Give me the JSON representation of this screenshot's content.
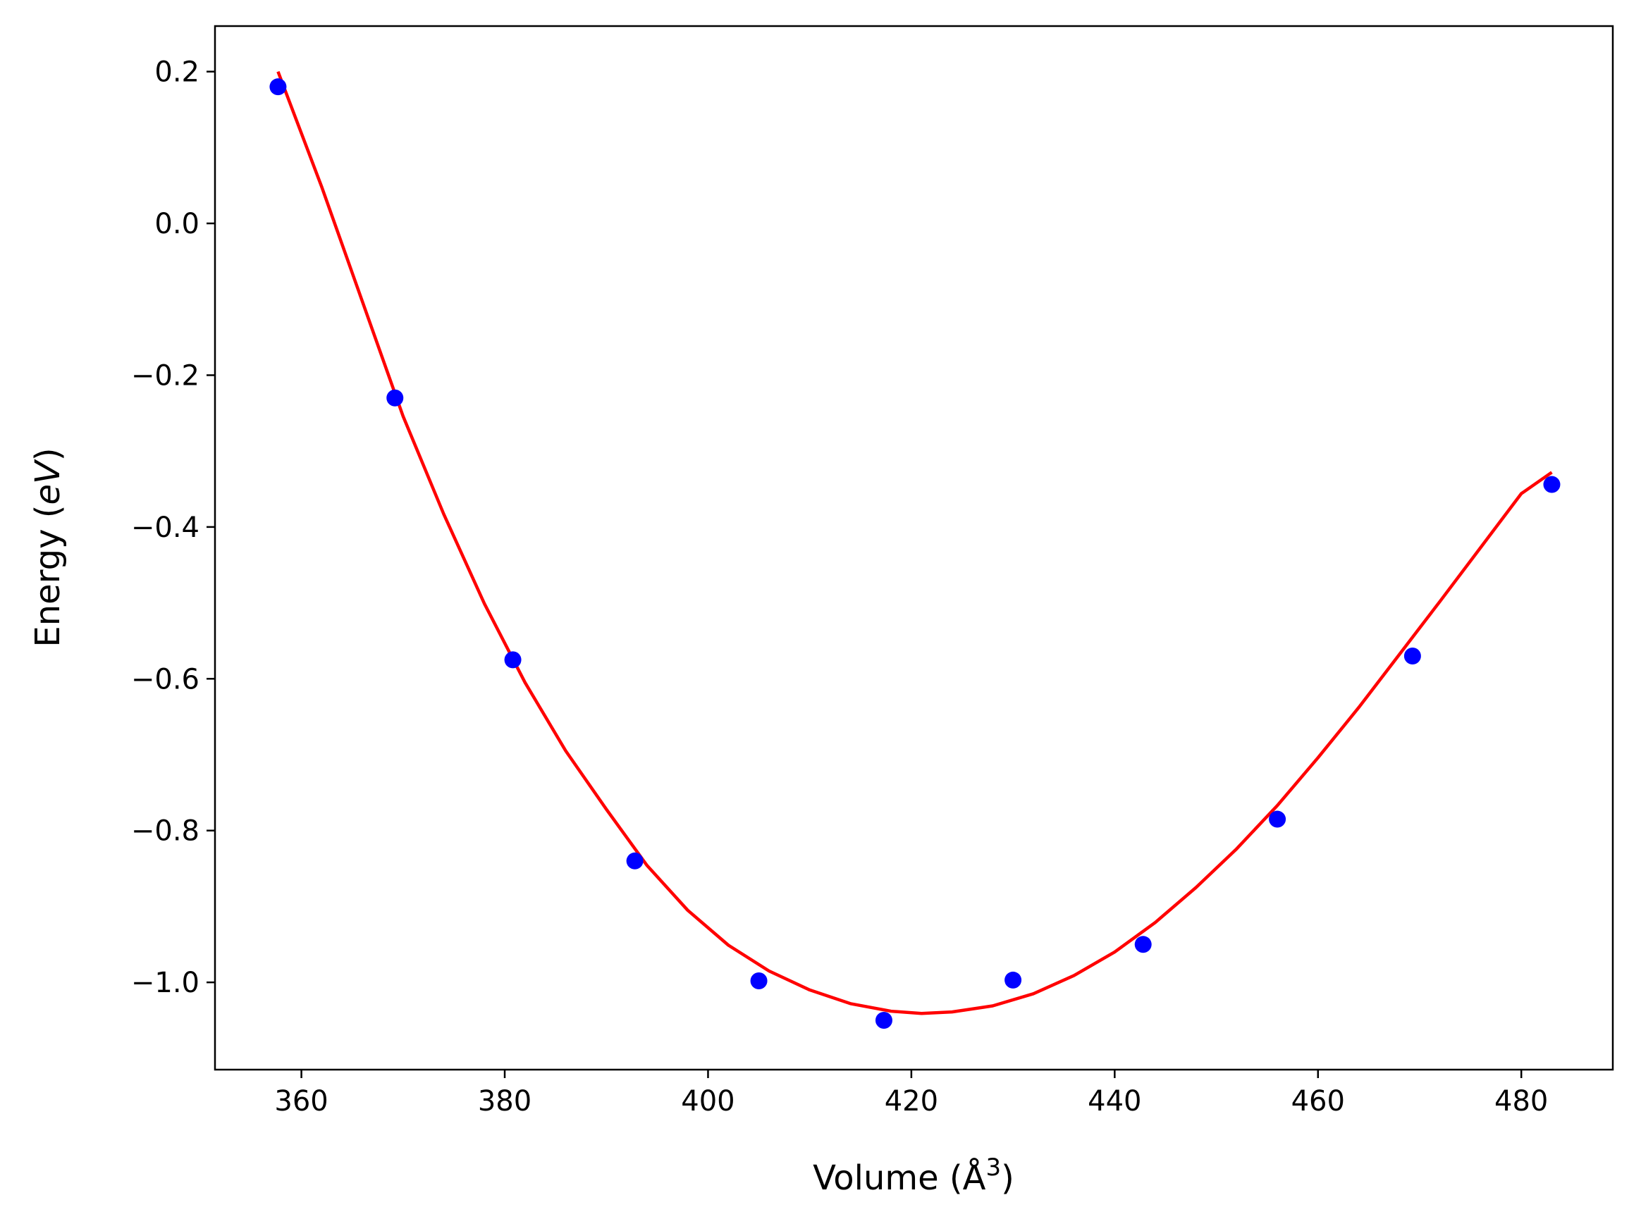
{
  "chart_data": {
    "type": "scatter",
    "title": "",
    "xlabel": "Volume (Å",
    "xlabel_sup": "3",
    "xlabel_close": ")",
    "ylabel": "Energy (",
    "ylabel_italic": "eV",
    "ylabel_close": ")",
    "xlim": [
      351.5,
      489
    ],
    "ylim": [
      -1.115,
      0.26
    ],
    "xticks": [
      360,
      380,
      400,
      420,
      440,
      460,
      480
    ],
    "xtick_labels": [
      "360",
      "380",
      "400",
      "420",
      "440",
      "460",
      "480"
    ],
    "yticks": [
      0.2,
      0.0,
      -0.2,
      -0.4,
      -0.6,
      -0.8,
      -1.0
    ],
    "ytick_labels": [
      "0.2",
      "0.0",
      "−0.2",
      "−0.4",
      "−0.6",
      "−0.8",
      "−1.0"
    ],
    "grid": false,
    "legend": "none",
    "series": [
      {
        "kind": "scatter",
        "color": "#0000ff",
        "x": [
          357.7,
          369.2,
          380.8,
          392.8,
          405.0,
          417.3,
          430.0,
          442.8,
          456.0,
          469.3,
          483.0
        ],
        "y": [
          0.18,
          -0.23,
          -0.575,
          -0.84,
          -0.998,
          -1.05,
          -0.997,
          -0.95,
          -0.785,
          -0.57,
          -0.344
        ]
      },
      {
        "kind": "line",
        "color": "#ff0000",
        "x": [
          357.7,
          362,
          366,
          370,
          374,
          378,
          382,
          386,
          390,
          394,
          398,
          402,
          406,
          410,
          414,
          418,
          421,
          424,
          428,
          432,
          436,
          440,
          444,
          448,
          452,
          456,
          460,
          464,
          468,
          472,
          476,
          480,
          483.0
        ],
        "y": [
          0.2,
          0.048,
          -0.103,
          -0.254,
          -0.383,
          -0.501,
          -0.605,
          -0.695,
          -0.772,
          -0.846,
          -0.905,
          -0.951,
          -0.985,
          -1.01,
          -1.028,
          -1.038,
          -1.041,
          -1.039,
          -1.031,
          -1.015,
          -0.991,
          -0.96,
          -0.921,
          -0.875,
          -0.824,
          -0.767,
          -0.704,
          -0.638,
          -0.568,
          -0.498,
          -0.427,
          -0.356,
          -0.328
        ]
      }
    ]
  }
}
